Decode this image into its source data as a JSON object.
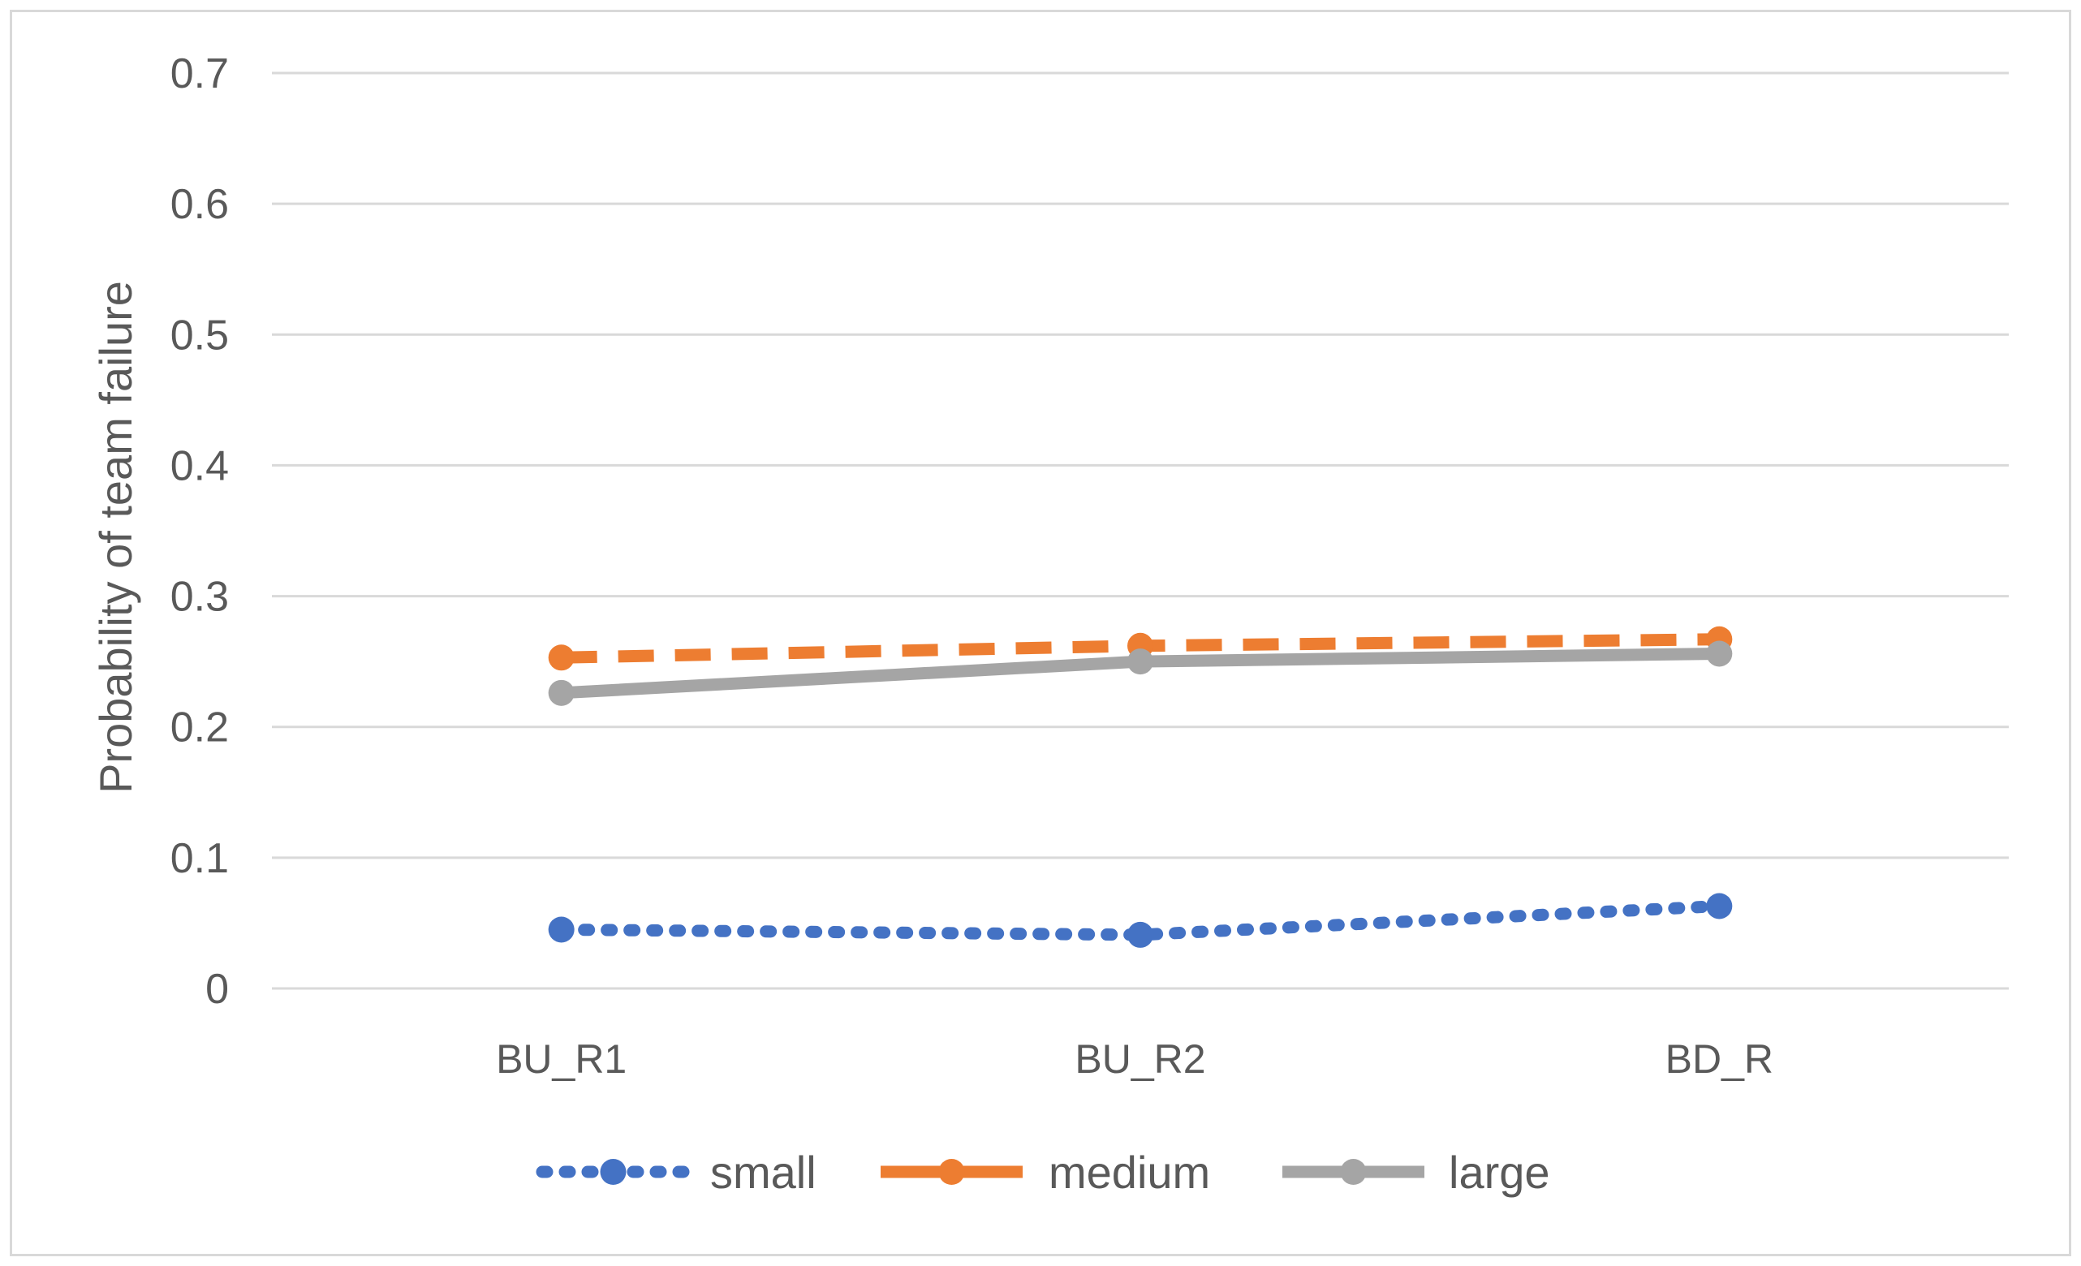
{
  "chart_data": {
    "type": "line",
    "title": "",
    "xlabel": "",
    "ylabel": "Probability of team failure",
    "categories": [
      "BU_R1",
      "BU_R2",
      "BD_R"
    ],
    "ylim": [
      0,
      0.7
    ],
    "yticks": [
      0,
      0.1,
      0.2,
      0.3,
      0.4,
      0.5,
      0.6,
      0.7
    ],
    "ytick_labels": [
      "0",
      "0.1",
      "0.2",
      "0.3",
      "0.4",
      "0.5",
      "0.6",
      "0.7"
    ],
    "grid": true,
    "legend_position": "bottom",
    "series": [
      {
        "name": "small",
        "values": [
          0.045,
          0.041,
          0.063
        ],
        "color": "#4472C4",
        "line_style": "dotted",
        "marker": "circle"
      },
      {
        "name": "medium",
        "values": [
          0.253,
          0.262,
          0.267
        ],
        "color": "#ED7D31",
        "line_style": "dashed",
        "marker": "circle"
      },
      {
        "name": "large",
        "values": [
          0.226,
          0.25,
          0.256
        ],
        "color": "#A5A5A5",
        "line_style": "solid",
        "marker": "circle"
      }
    ]
  }
}
